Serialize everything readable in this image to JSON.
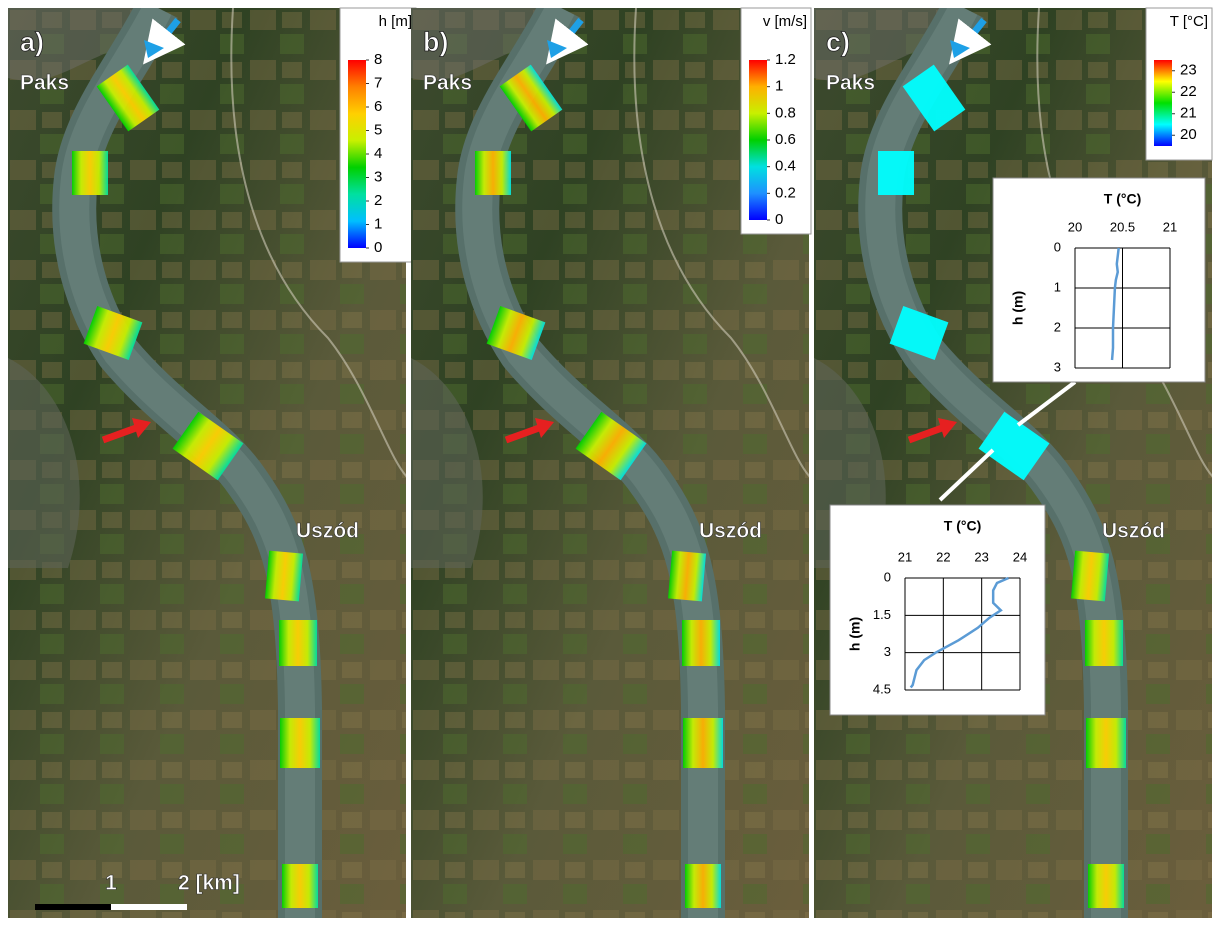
{
  "panels": [
    {
      "label": "a)",
      "places": [
        "Paks",
        "Uszód"
      ],
      "colorbar": {
        "title": "h [m]",
        "lim": [
          0,
          8
        ],
        "ticks": [
          8,
          7,
          6,
          5,
          4,
          3,
          2,
          1,
          0
        ],
        "colors": [
          "#0000ff",
          "#00bfff",
          "#00e0a0",
          "#00d000",
          "#c8f000",
          "#ffd000",
          "#ff8000",
          "#ff0000"
        ]
      },
      "scale": [
        "1",
        "2 [km]"
      ]
    },
    {
      "label": "b)",
      "places": [
        "Paks",
        "Uszód"
      ],
      "colorbar": {
        "title": "v [m/s]",
        "lim": [
          0,
          1.2
        ],
        "ticks": [
          1.2,
          1,
          0.8,
          0.6,
          0.4,
          0.2,
          0
        ],
        "colors": [
          "#0000ff",
          "#1e90ff",
          "#00e0e0",
          "#00d000",
          "#c8f000",
          "#ffb000",
          "#ff0000"
        ]
      }
    },
    {
      "label": "c)",
      "places": [
        "Paks",
        "Uszód"
      ],
      "colorbar": {
        "title": "T [°C]",
        "lim": [
          19.5,
          23.5
        ],
        "ticks": [
          23,
          22,
          21,
          20
        ],
        "colors": [
          "#0000ff",
          "#00ffff",
          "#00e000",
          "#ffff00",
          "#ff0000"
        ]
      }
    }
  ],
  "chart_data": [
    {
      "type": "line",
      "title": "T (°C)",
      "y_label": "h (m)",
      "xlim": [
        20,
        21
      ],
      "xticks": [
        20,
        20.5,
        21
      ],
      "ylim": [
        0,
        3
      ],
      "yticks": [
        0,
        1,
        2,
        3
      ],
      "color": "#5b9bd5",
      "x": [
        20.46,
        20.45,
        20.44,
        20.45,
        20.43,
        20.42,
        20.41,
        20.4,
        20.4,
        20.39
      ],
      "values": [
        0,
        0.2,
        0.4,
        0.6,
        0.8,
        1,
        1.5,
        2,
        2.5,
        2.8
      ]
    },
    {
      "type": "line",
      "title": "T (°C)",
      "y_label": "h (m)",
      "xlim": [
        21,
        24
      ],
      "xticks": [
        21,
        22,
        23,
        24
      ],
      "ylim": [
        0,
        4.5
      ],
      "yticks": [
        0,
        1.5,
        3,
        4.5
      ],
      "color": "#5b9bd5",
      "x": [
        23.7,
        23.4,
        23.3,
        23.3,
        23.5,
        23.2,
        22.9,
        22.4,
        21.8,
        21.5,
        21.3,
        21.25,
        21.2,
        21.15
      ],
      "values": [
        0,
        0.2,
        0.5,
        1,
        1.3,
        1.6,
        2,
        2.5,
        3,
        3.3,
        3.7,
        4,
        4.3,
        4.4
      ]
    }
  ]
}
